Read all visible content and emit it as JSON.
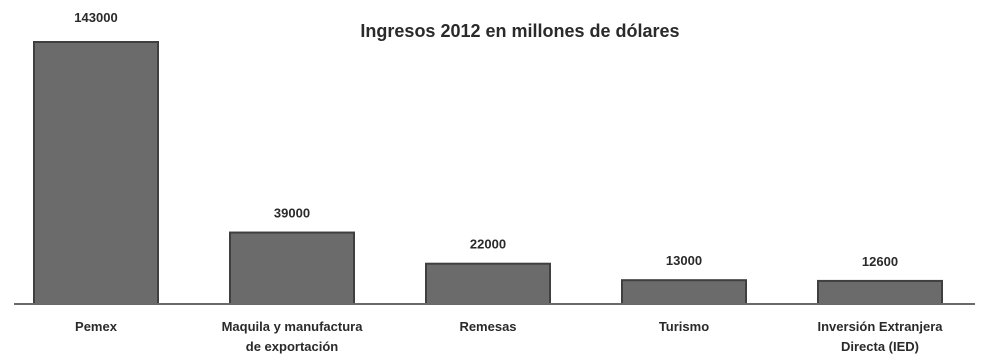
{
  "chart_data": {
    "type": "bar",
    "title": "Ingresos 2012 en millones de dólares",
    "categories": [
      [
        "Pemex"
      ],
      [
        "Maquila y manufactura",
        "de exportación"
      ],
      [
        "Remesas"
      ],
      [
        "Turismo"
      ],
      [
        "Inversión Extranjera",
        "Directa (IED)"
      ]
    ],
    "values": [
      143000,
      39000,
      22000,
      13000,
      12600
    ],
    "data_labels": [
      "143000",
      "39000",
      "22000",
      "13000",
      "12600"
    ],
    "ylim": [
      0,
      143000
    ],
    "grid": false,
    "legend": "none",
    "colors": {
      "bar_fill": "#6b6b6b",
      "bar_stroke": "#3f3f3f",
      "axis": "#6a6a6a",
      "text": "#2a2a2a"
    }
  }
}
